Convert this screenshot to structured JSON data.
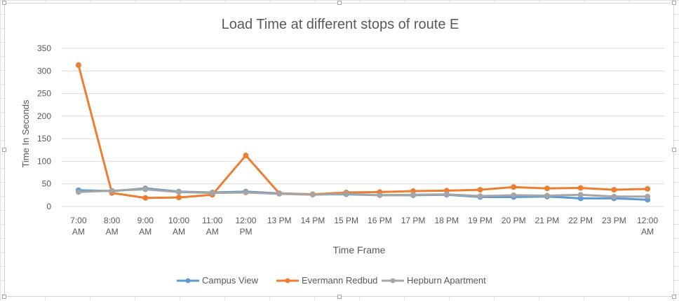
{
  "chart_data": {
    "type": "line",
    "title": "Load Time at different stops of route E",
    "xlabel": "Time Frame",
    "ylabel": "Time In Seconds",
    "ylim": [
      0,
      350
    ],
    "yticks": [
      0,
      50,
      100,
      150,
      200,
      250,
      300,
      350
    ],
    "grid": true,
    "legend": "bottom",
    "categories": [
      [
        "7:00",
        "AM"
      ],
      [
        "8:00",
        "AM"
      ],
      [
        "9:00",
        "AM"
      ],
      [
        "10:00",
        "AM"
      ],
      [
        "11:00",
        "AM"
      ],
      [
        "12:00",
        "PM"
      ],
      [
        "13 PM"
      ],
      [
        "14 PM"
      ],
      [
        "15 PM"
      ],
      [
        "16 PM"
      ],
      [
        "17 PM"
      ],
      [
        "18 PM"
      ],
      [
        "19 PM"
      ],
      [
        "20 PM"
      ],
      [
        "21 PM"
      ],
      [
        "22 PM"
      ],
      [
        "23 PM"
      ],
      [
        "12:00",
        "AM"
      ]
    ],
    "series": [
      {
        "name": "Campus View",
        "color": "#5b9bd5",
        "values": [
          36,
          34,
          40,
          33,
          31,
          33,
          29,
          27,
          27,
          25,
          25,
          26,
          21,
          21,
          22,
          18,
          18,
          15
        ]
      },
      {
        "name": "Evermann Redbud",
        "color": "#ed7d31",
        "values": [
          313,
          30,
          19,
          20,
          26,
          113,
          29,
          27,
          31,
          32,
          34,
          35,
          37,
          43,
          40,
          41,
          37,
          39
        ]
      },
      {
        "name": "Hepburn Apartment",
        "color": "#a5a5a5",
        "values": [
          32,
          35,
          38,
          32,
          30,
          31,
          28,
          26,
          28,
          25,
          26,
          27,
          23,
          25,
          24,
          26,
          22,
          22
        ]
      }
    ]
  }
}
